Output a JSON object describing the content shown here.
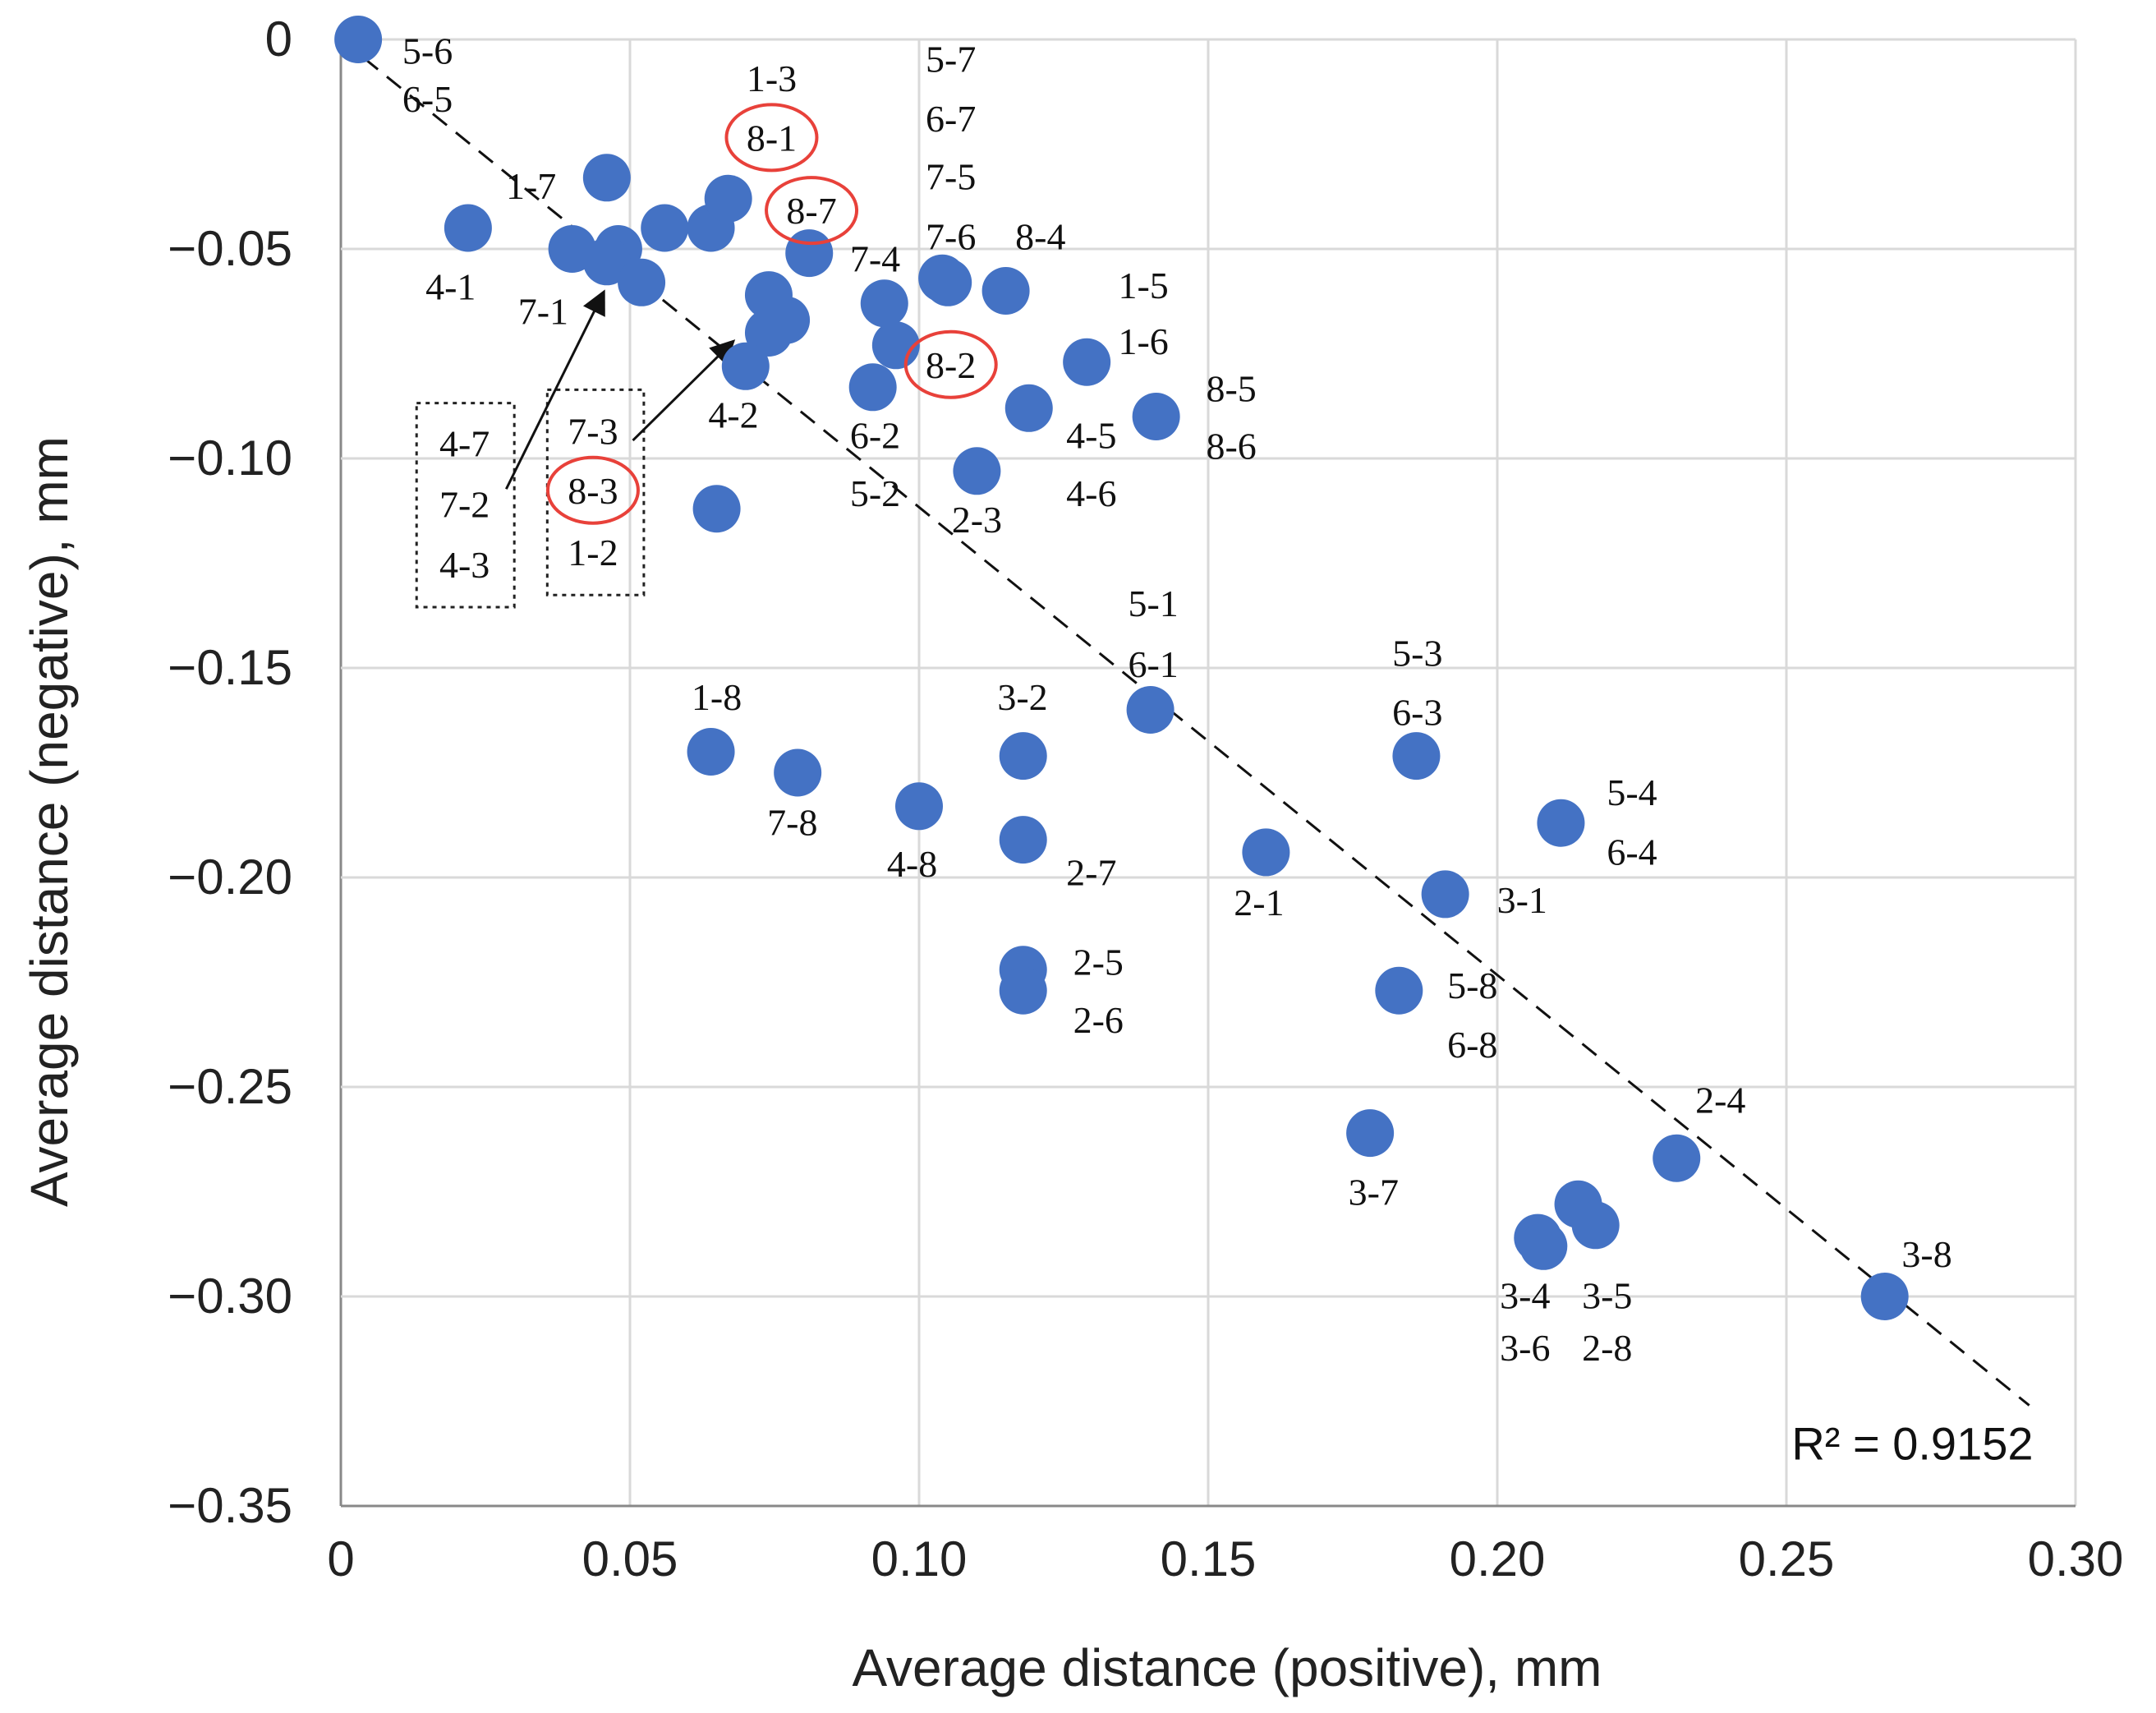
{
  "chart_data": {
    "type": "scatter",
    "title": "",
    "xlabel": "Average distance (positive), mm",
    "ylabel": "Average distance (negative), mm",
    "xlim": [
      0,
      0.3
    ],
    "ylim": [
      -0.35,
      0
    ],
    "xticks": [
      "0",
      "0.05",
      "0.10",
      "0.15",
      "0.20",
      "0.25",
      "0.30"
    ],
    "yticks": [
      "0",
      "−0.05",
      "−0.10",
      "−0.15",
      "−0.20",
      "−0.25",
      "−0.30",
      "−0.35"
    ],
    "grid": true,
    "point_color": "#4472C4",
    "highlight_color": "#E8413A",
    "points": [
      [
        0.003,
        0.0
      ],
      [
        0.022,
        -0.045
      ],
      [
        0.046,
        -0.033
      ],
      [
        0.04,
        -0.05
      ],
      [
        0.048,
        -0.05
      ],
      [
        0.046,
        -0.053
      ],
      [
        0.052,
        -0.058
      ],
      [
        0.056,
        -0.045
      ],
      [
        0.064,
        -0.045
      ],
      [
        0.067,
        -0.038
      ],
      [
        0.081,
        -0.051
      ],
      [
        0.074,
        -0.061
      ],
      [
        0.077,
        -0.067
      ],
      [
        0.074,
        -0.07
      ],
      [
        0.07,
        -0.078
      ],
      [
        0.094,
        -0.063
      ],
      [
        0.096,
        -0.073
      ],
      [
        0.092,
        -0.083
      ],
      [
        0.104,
        -0.057
      ],
      [
        0.105,
        -0.058
      ],
      [
        0.115,
        -0.06
      ],
      [
        0.129,
        -0.077
      ],
      [
        0.119,
        -0.088
      ],
      [
        0.141,
        -0.09
      ],
      [
        0.11,
        -0.103
      ],
      [
        0.065,
        -0.112
      ],
      [
        0.064,
        -0.17
      ],
      [
        0.079,
        -0.175
      ],
      [
        0.1,
        -0.183
      ],
      [
        0.118,
        -0.171
      ],
      [
        0.118,
        -0.191
      ],
      [
        0.118,
        -0.222
      ],
      [
        0.118,
        -0.227
      ],
      [
        0.14,
        -0.16
      ],
      [
        0.16,
        -0.194
      ],
      [
        0.186,
        -0.171
      ],
      [
        0.211,
        -0.187
      ],
      [
        0.191,
        -0.204
      ],
      [
        0.183,
        -0.227
      ],
      [
        0.178,
        -0.261
      ],
      [
        0.214,
        -0.278
      ],
      [
        0.217,
        -0.283
      ],
      [
        0.207,
        -0.286
      ],
      [
        0.208,
        -0.288
      ],
      [
        0.231,
        -0.267
      ],
      [
        0.267,
        -0.3
      ]
    ],
    "trendline": {
      "type": "linear",
      "dashed": true,
      "from": [
        0,
        0
      ],
      "to": [
        0.292,
        -0.326
      ],
      "label": "R² = 0.9152",
      "label_at": [
        0.258,
        -0.335
      ]
    },
    "annotations": [
      {
        "text": "5-6",
        "x": 0.015,
        "y": -0.0026
      },
      {
        "text": "6-5",
        "x": 0.015,
        "y": -0.0141
      },
      {
        "text": "1-3",
        "x": 0.0745,
        "y": -0.0092
      },
      {
        "text": "8-1",
        "x": 0.0745,
        "y": -0.0234,
        "circled": true
      },
      {
        "text": "8-7",
        "x": 0.0814,
        "y": -0.0408,
        "circled": true
      },
      {
        "text": "5-7",
        "x": 0.1055,
        "y": -0.0046
      },
      {
        "text": "6-7",
        "x": 0.1055,
        "y": -0.0188
      },
      {
        "text": "7-5",
        "x": 0.1055,
        "y": -0.0326
      },
      {
        "text": "7-6",
        "x": 0.1055,
        "y": -0.047
      },
      {
        "text": "8-4",
        "x": 0.121,
        "y": -0.047
      },
      {
        "text": "7-4",
        "x": 0.0924,
        "y": -0.0523
      },
      {
        "text": "1-7",
        "x": 0.0329,
        "y": -0.0349
      },
      {
        "text": "4-1",
        "x": 0.019,
        "y": -0.0589
      },
      {
        "text": "7-1",
        "x": 0.035,
        "y": -0.0648
      },
      {
        "text": "1-5",
        "x": 0.1388,
        "y": -0.0586
      },
      {
        "text": "1-6",
        "x": 0.1388,
        "y": -0.072
      },
      {
        "text": "8-2",
        "x": 0.1055,
        "y": -0.0776,
        "circled": true
      },
      {
        "text": "8-5",
        "x": 0.154,
        "y": -0.0832
      },
      {
        "text": "8-6",
        "x": 0.154,
        "y": -0.097
      },
      {
        "text": "4-5",
        "x": 0.1298,
        "y": -0.0944
      },
      {
        "text": "4-6",
        "x": 0.1298,
        "y": -0.1082
      },
      {
        "text": "4-2",
        "x": 0.0679,
        "y": -0.0895
      },
      {
        "text": "6-2",
        "x": 0.0924,
        "y": -0.0944
      },
      {
        "text": "5-2",
        "x": 0.0924,
        "y": -0.1082
      },
      {
        "text": "2-3",
        "x": 0.11,
        "y": -0.1145
      },
      {
        "text": "4-7",
        "x": 0.0214,
        "y": -0.0964
      },
      {
        "text": "7-2",
        "x": 0.0214,
        "y": -0.1109
      },
      {
        "text": "4-3",
        "x": 0.0214,
        "y": -0.1253
      },
      {
        "text": "7-3",
        "x": 0.0436,
        "y": -0.0934
      },
      {
        "text": "8-3",
        "x": 0.0436,
        "y": -0.1076,
        "circled": true
      },
      {
        "text": "1-2",
        "x": 0.0436,
        "y": -0.1224
      },
      {
        "text": "5-1",
        "x": 0.1405,
        "y": -0.1345
      },
      {
        "text": "6-1",
        "x": 0.1405,
        "y": -0.149
      },
      {
        "text": "5-3",
        "x": 0.1862,
        "y": -0.1464
      },
      {
        "text": "6-3",
        "x": 0.1862,
        "y": -0.1605
      },
      {
        "text": "1-8",
        "x": 0.065,
        "y": -0.1569
      },
      {
        "text": "3-2",
        "x": 0.1179,
        "y": -0.1569
      },
      {
        "text": "7-8",
        "x": 0.0781,
        "y": -0.1868
      },
      {
        "text": "4-8",
        "x": 0.0988,
        "y": -0.1967
      },
      {
        "text": "2-7",
        "x": 0.1298,
        "y": -0.1987
      },
      {
        "text": "2-1",
        "x": 0.1588,
        "y": -0.2059
      },
      {
        "text": "5-4",
        "x": 0.2233,
        "y": -0.1796
      },
      {
        "text": "6-4",
        "x": 0.2233,
        "y": -0.1938
      },
      {
        "text": "3-1",
        "x": 0.2043,
        "y": -0.2053
      },
      {
        "text": "2-5",
        "x": 0.131,
        "y": -0.2201
      },
      {
        "text": "2-6",
        "x": 0.131,
        "y": -0.2339
      },
      {
        "text": "5-8",
        "x": 0.1957,
        "y": -0.2257
      },
      {
        "text": "6-8",
        "x": 0.1957,
        "y": -0.2398
      },
      {
        "text": "2-4",
        "x": 0.2386,
        "y": -0.253
      },
      {
        "text": "3-7",
        "x": 0.1786,
        "y": -0.275
      },
      {
        "text": "3-8",
        "x": 0.2743,
        "y": -0.2898
      },
      {
        "text": "3-4",
        "x": 0.2048,
        "y": -0.2997
      },
      {
        "text": "3-6",
        "x": 0.2048,
        "y": -0.3122
      },
      {
        "text": "3-5",
        "x": 0.219,
        "y": -0.2997
      },
      {
        "text": "2-8",
        "x": 0.219,
        "y": -0.3122
      }
    ]
  }
}
